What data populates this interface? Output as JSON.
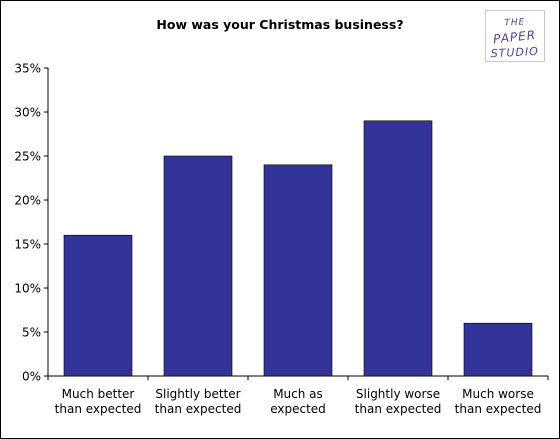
{
  "chart_data": {
    "type": "bar",
    "title": "How was your Christmas business?",
    "categories": [
      [
        "Much better",
        "than expected"
      ],
      [
        "Slightly better",
        "than expected"
      ],
      [
        "Much as",
        "expected"
      ],
      [
        "Slightly worse",
        "than expected"
      ],
      [
        "Much worse",
        "than expected"
      ]
    ],
    "values": [
      16,
      25,
      24,
      29,
      6
    ],
    "ylim": [
      0,
      35
    ],
    "yticks": [
      "0%",
      "5%",
      "10%",
      "15%",
      "20%",
      "25%",
      "30%",
      "35%"
    ],
    "xlabel": "",
    "ylabel": "",
    "grid": false,
    "bar_color": "#333399"
  },
  "logo": {
    "lines": [
      "THE",
      "PAPER",
      "STUDIO"
    ],
    "color": "#5a3f8c"
  }
}
